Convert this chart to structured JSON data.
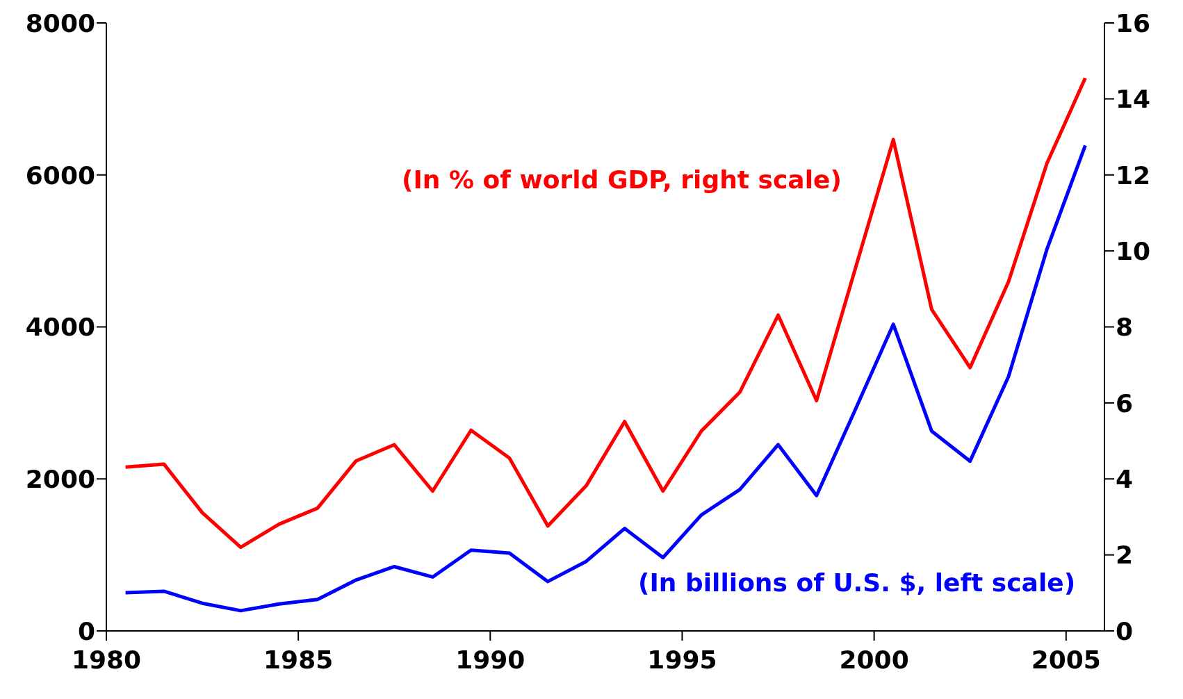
{
  "chart_data": {
    "type": "line",
    "x": [
      1980.5,
      1981.5,
      1982.5,
      1983.5,
      1984.5,
      1985.5,
      1986.5,
      1987.5,
      1988.5,
      1989.5,
      1990.5,
      1991.5,
      1992.5,
      1993.5,
      1994.5,
      1995.5,
      1996.5,
      1997.5,
      1998.5,
      1999.5,
      2000.5,
      2001.5,
      2002.5,
      2003.5,
      2004.5,
      2005.5
    ],
    "series": [
      {
        "name": "(In % of world GDP, right scale)",
        "color": "#ff0000",
        "axis": "y2",
        "values": [
          4.31,
          4.39,
          3.11,
          2.2,
          2.81,
          3.23,
          4.47,
          4.9,
          3.68,
          5.28,
          4.55,
          2.76,
          3.82,
          5.51,
          3.68,
          5.26,
          6.28,
          8.31,
          6.06,
          9.5,
          12.93,
          8.46,
          6.93,
          9.19,
          12.3,
          14.55
        ]
      },
      {
        "name": "(In billions of U.S. $, left scale)",
        "color": "#0000ff",
        "values": [
          502,
          522,
          364,
          266,
          354,
          413,
          669,
          846,
          709,
          1063,
          1024,
          650,
          915,
          1348,
          965,
          1526,
          1860,
          2451,
          1781,
          2900,
          4035,
          2628,
          2234,
          3346,
          5020,
          6388
        ]
      }
    ],
    "xlim": [
      1980,
      2006
    ],
    "xticks": [
      1980,
      1985,
      1990,
      1995,
      2000,
      2005
    ],
    "ylim": [
      0,
      8000
    ],
    "yticks": [
      0,
      2000,
      4000,
      6000,
      8000
    ],
    "y2lim": [
      0,
      16
    ],
    "y2ticks": [
      0,
      2,
      4,
      6,
      8,
      10,
      12,
      14,
      16
    ],
    "grid": false,
    "legend": false,
    "marker": "none",
    "line_style": "solid"
  }
}
